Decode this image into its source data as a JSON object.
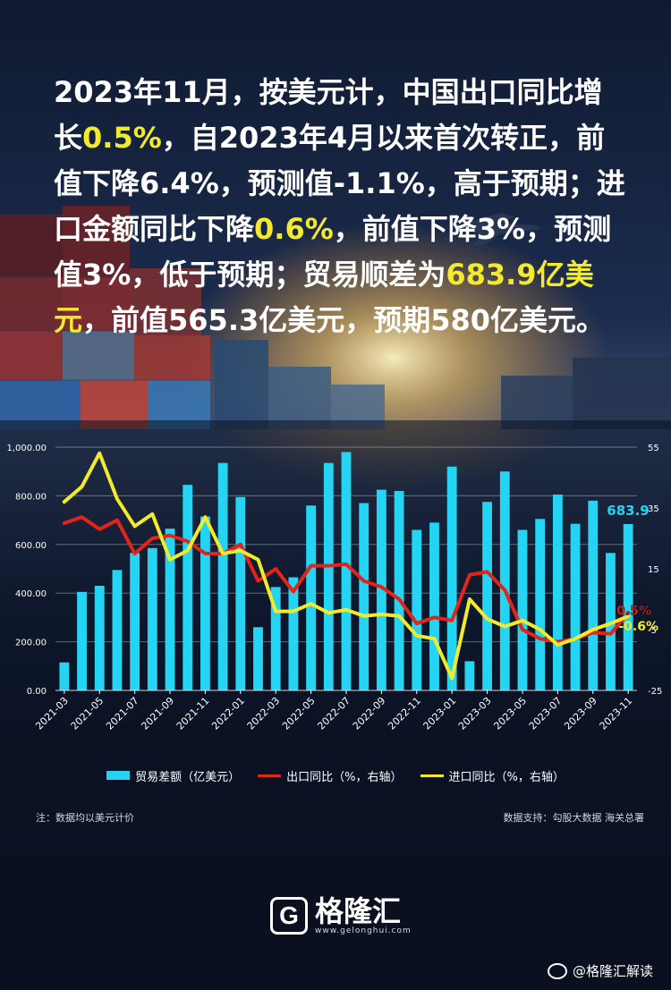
{
  "headline": {
    "seg1": "2023年11月，按美元计，中国出口同比增长",
    "hl1": "0.5%",
    "seg2": "，自2023年4月以来首次转正，前值下降6.4%，预测值-1.1%，高于预期；进口金额同比下降",
    "hl2": "0.6%",
    "seg3": "，前值下降3%，预测值3%，低于预期；贸易顺差为",
    "hl3": "683.9亿美元",
    "seg4": "，前值565.3亿美元，预期580亿美元。"
  },
  "colors": {
    "bar": "#24d4f2",
    "export": "#e32418",
    "import": "#f2ea2a",
    "highlight": "#f2ea2a"
  },
  "chart_data": {
    "type": "bar",
    "x": [
      "2021-03",
      "2021-04",
      "2021-05",
      "2021-06",
      "2021-07",
      "2021-08",
      "2021-09",
      "2021-10",
      "2021-11",
      "2021-12",
      "2022-01",
      "2022-02",
      "2022-03",
      "2022-04",
      "2022-05",
      "2022-06",
      "2022-07",
      "2022-08",
      "2022-09",
      "2022-10",
      "2022-11",
      "2022-12",
      "2023-01",
      "2023-02",
      "2023-03",
      "2023-04",
      "2023-05",
      "2023-06",
      "2023-07",
      "2023-08",
      "2023-09",
      "2023-10",
      "2023-11"
    ],
    "x_tick_labels": [
      "2021-03",
      "2021-05",
      "2021-07",
      "2021-09",
      "2021-11",
      "2022-01",
      "2022-03",
      "2022-05",
      "2022-07",
      "2022-09",
      "2022-11",
      "2023-01",
      "2023-03",
      "2023-05",
      "2023-07",
      "2023-09",
      "2023-11"
    ],
    "series": [
      {
        "name": "贸易差额（亿美元）",
        "type": "bar",
        "axis": "left",
        "values": [
          115,
          405,
          430,
          495,
          565,
          585,
          665,
          845,
          715,
          935,
          795,
          260,
          425,
          465,
          760,
          935,
          980,
          770,
          825,
          820,
          660,
          690,
          920,
          120,
          775,
          900,
          660,
          705,
          805,
          685,
          780,
          565,
          683.9
        ]
      },
      {
        "name": "出口同比（%，右轴）",
        "type": "line",
        "axis": "right",
        "values": [
          30,
          32,
          28,
          31,
          20,
          25,
          26,
          24,
          20,
          20,
          23,
          11,
          15,
          7.5,
          16,
          16,
          16.5,
          11,
          9,
          5,
          -3,
          -1,
          -2,
          13,
          14,
          8,
          -5,
          -8,
          -9,
          -8,
          -6,
          -6.4,
          0.5
        ]
      },
      {
        "name": "进口同比（%，右轴）",
        "type": "line",
        "axis": "right",
        "values": [
          37,
          42,
          53,
          38,
          29,
          33,
          18,
          21,
          32,
          20,
          21,
          18,
          1,
          1,
          3.5,
          0.5,
          1.5,
          -0.5,
          0,
          -0.5,
          -7,
          -8,
          -21,
          5,
          -1.5,
          -4,
          -2,
          -5,
          -10,
          -8,
          -5,
          -3,
          -0.6
        ]
      }
    ],
    "annotations": {
      "bar_last": "683.9",
      "export_last": "0.5%",
      "import_last": "-0.6%"
    },
    "y_left": {
      "ylim": [
        0,
        1000
      ],
      "ticks": [
        "0.00",
        "200.00",
        "400.00",
        "600.00",
        "800.00",
        "1,000.00"
      ]
    },
    "y_right": {
      "ylim": [
        -25,
        55
      ],
      "ticks": [
        "-25",
        "-5",
        "15",
        "35",
        "55"
      ]
    },
    "grid": true,
    "legend": "bottom"
  },
  "legend": [
    {
      "label": "贸易差额（亿美元）",
      "kind": "bar",
      "color": "#24d4f2"
    },
    {
      "label": "出口同比（%，右轴）",
      "kind": "line",
      "color": "#e32418"
    },
    {
      "label": "进口同比（%，右轴）",
      "kind": "line",
      "color": "#f2ea2a"
    }
  ],
  "footer": {
    "note": "注：数据均以美元计价",
    "source": "数据支持：勾股大数据 海关总署"
  },
  "brand": {
    "mark": "G",
    "name": "格隆汇",
    "url": "www.gelonghui.com",
    "weibo": "@格隆汇解读"
  }
}
